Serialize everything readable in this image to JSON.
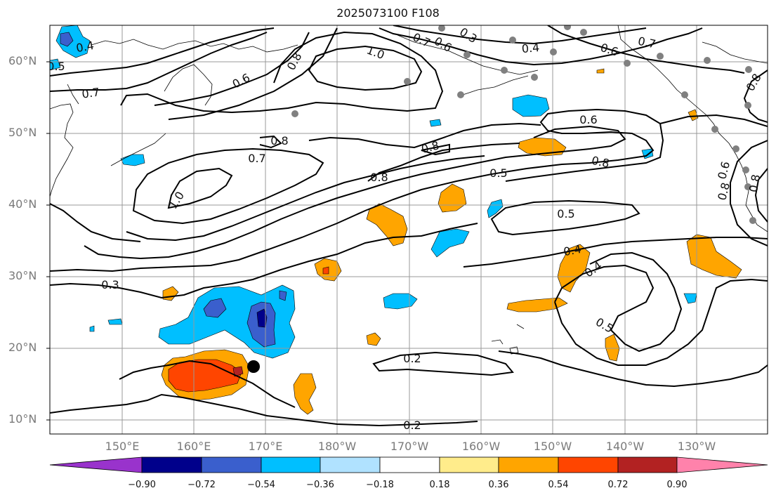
{
  "title": "2025073100 F108",
  "lat_labels": [
    "60°N",
    "50°N",
    "40°N",
    "30°N",
    "20°N",
    "10°N"
  ],
  "lon_labels": [
    "150°E",
    "160°E",
    "170°E",
    "180°W",
    "170°W",
    "160°W",
    "150°W",
    "140°W",
    "130°W"
  ],
  "contour_labels": [
    {
      "id": "c1",
      "text": "0.4"
    },
    {
      "id": "c2",
      "text": "0.5"
    },
    {
      "id": "c3",
      "text": "0.7"
    },
    {
      "id": "c4",
      "text": "0.6"
    },
    {
      "id": "c5",
      "text": "0.8"
    },
    {
      "id": "c6",
      "text": "1.0"
    },
    {
      "id": "c7",
      "text": "0.7"
    },
    {
      "id": "c8",
      "text": "0.6"
    },
    {
      "id": "c9",
      "text": "0.3"
    },
    {
      "id": "c10",
      "text": "0.4"
    },
    {
      "id": "c11",
      "text": "0.6"
    },
    {
      "id": "c12",
      "text": "0.7"
    },
    {
      "id": "c13",
      "text": "0.8"
    },
    {
      "id": "c14",
      "text": "0.8"
    },
    {
      "id": "c15",
      "text": "0.7"
    },
    {
      "id": "c16",
      "text": "0.8"
    },
    {
      "id": "c17",
      "text": "0.8"
    },
    {
      "id": "c18",
      "text": "0.6"
    },
    {
      "id": "c19",
      "text": "0.8"
    },
    {
      "id": "c20",
      "text": "0.5"
    },
    {
      "id": "c21",
      "text": "1.0"
    },
    {
      "id": "c22",
      "text": "0.5"
    },
    {
      "id": "c23",
      "text": "0.4"
    },
    {
      "id": "c24",
      "text": "0.4"
    },
    {
      "id": "c25",
      "text": "0.5"
    },
    {
      "id": "c26",
      "text": "0.3"
    },
    {
      "id": "c27",
      "text": "0.2"
    },
    {
      "id": "c28",
      "text": "0.2"
    },
    {
      "id": "c29",
      "text": "0.6"
    },
    {
      "id": "c30",
      "text": "0.8"
    },
    {
      "id": "c31",
      "text": "0.8"
    }
  ],
  "colorbar": {
    "ticks": [
      "−0.90",
      "−0.72",
      "−0.54",
      "−0.36",
      "−0.18",
      "0.18",
      "0.36",
      "0.54",
      "0.72",
      "0.90"
    ],
    "colors": [
      "#9933cc",
      "#00008b",
      "#3a5fcd",
      "#00bfff",
      "#b0e2ff",
      "#ffffff",
      "#ffec8b",
      "#ffa500",
      "#ff4500",
      "#b22222",
      "#ff82ab"
    ]
  },
  "colors": {
    "land_line": "#000000",
    "grid": "#999999",
    "contour": "#000000",
    "station_dot": "#808080",
    "storm_marker": "#000000"
  }
}
